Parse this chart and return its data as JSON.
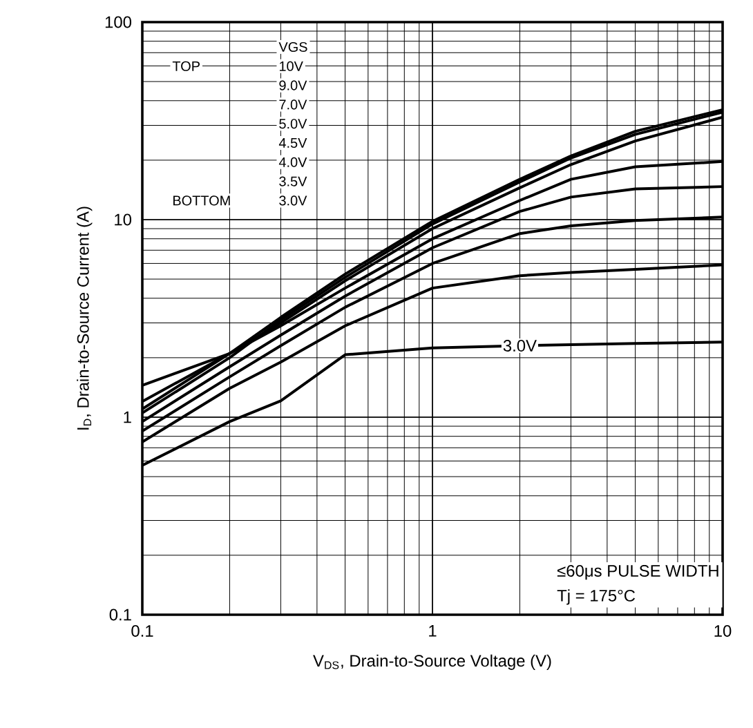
{
  "chart_data": {
    "type": "line",
    "xlabel": "V$_{DS}$, Drain-to-Source Voltage (V)",
    "ylabel": "I$_{D}$, Drain-to-Source Current (A)",
    "log": "xy",
    "grid": true,
    "line_style": "solid",
    "marker": "none",
    "xlim": [
      0.1,
      10
    ],
    "ylim": [
      0.1,
      100
    ],
    "xticks": [
      0.1,
      1,
      10
    ],
    "yticks": [
      0.1,
      1,
      10,
      100
    ],
    "x": [
      0.1,
      0.2,
      0.3,
      0.5,
      1,
      2,
      3,
      5,
      10
    ],
    "series": [
      {
        "color": "#000000",
        "values": [
          1.1,
          2.1,
          3.2,
          5.3,
          9.8,
          16,
          21,
          28,
          36
        ]
      },
      {
        "color": "#000000",
        "values": [
          1.05,
          2.0,
          3.1,
          5.1,
          9.5,
          15.5,
          20.5,
          27,
          35
        ]
      },
      {
        "color": "#000000",
        "values": [
          1.2,
          2.1,
          3.0,
          4.9,
          9.0,
          14.5,
          19,
          25,
          33
        ]
      },
      {
        "color": "#000000",
        "values": [
          1.45,
          2.1,
          2.9,
          4.5,
          8.0,
          12.5,
          16,
          18.5,
          19.7
        ]
      },
      {
        "color": "#000000",
        "values": [
          0.95,
          1.8,
          2.6,
          4.1,
          7.2,
          11,
          13,
          14.3,
          14.7
        ]
      },
      {
        "color": "#000000",
        "values": [
          0.85,
          1.6,
          2.3,
          3.6,
          6.0,
          8.5,
          9.3,
          9.9,
          10.3
        ]
      },
      {
        "color": "#000000",
        "values": [
          0.75,
          1.4,
          1.9,
          2.9,
          4.5,
          5.2,
          5.4,
          5.6,
          5.9
        ]
      },
      {
        "color": "#000000",
        "values": [
          0.57,
          0.95,
          1.21,
          2.07,
          2.24,
          2.3,
          2.33,
          2.36,
          2.4
        ]
      }
    ],
    "annotations": [
      "VGS",
      "TOP",
      "10V",
      "9.0V",
      "7.0V",
      "5.0V",
      "4.5V",
      "4.0V",
      "3.5V",
      "BOTTOM",
      "3.0V",
      {
        "text": "3.0V",
        "x": 2,
        "y": 2.3
      },
      "≤60μs PULSE WIDTH",
      "Tj = 175°C"
    ]
  }
}
